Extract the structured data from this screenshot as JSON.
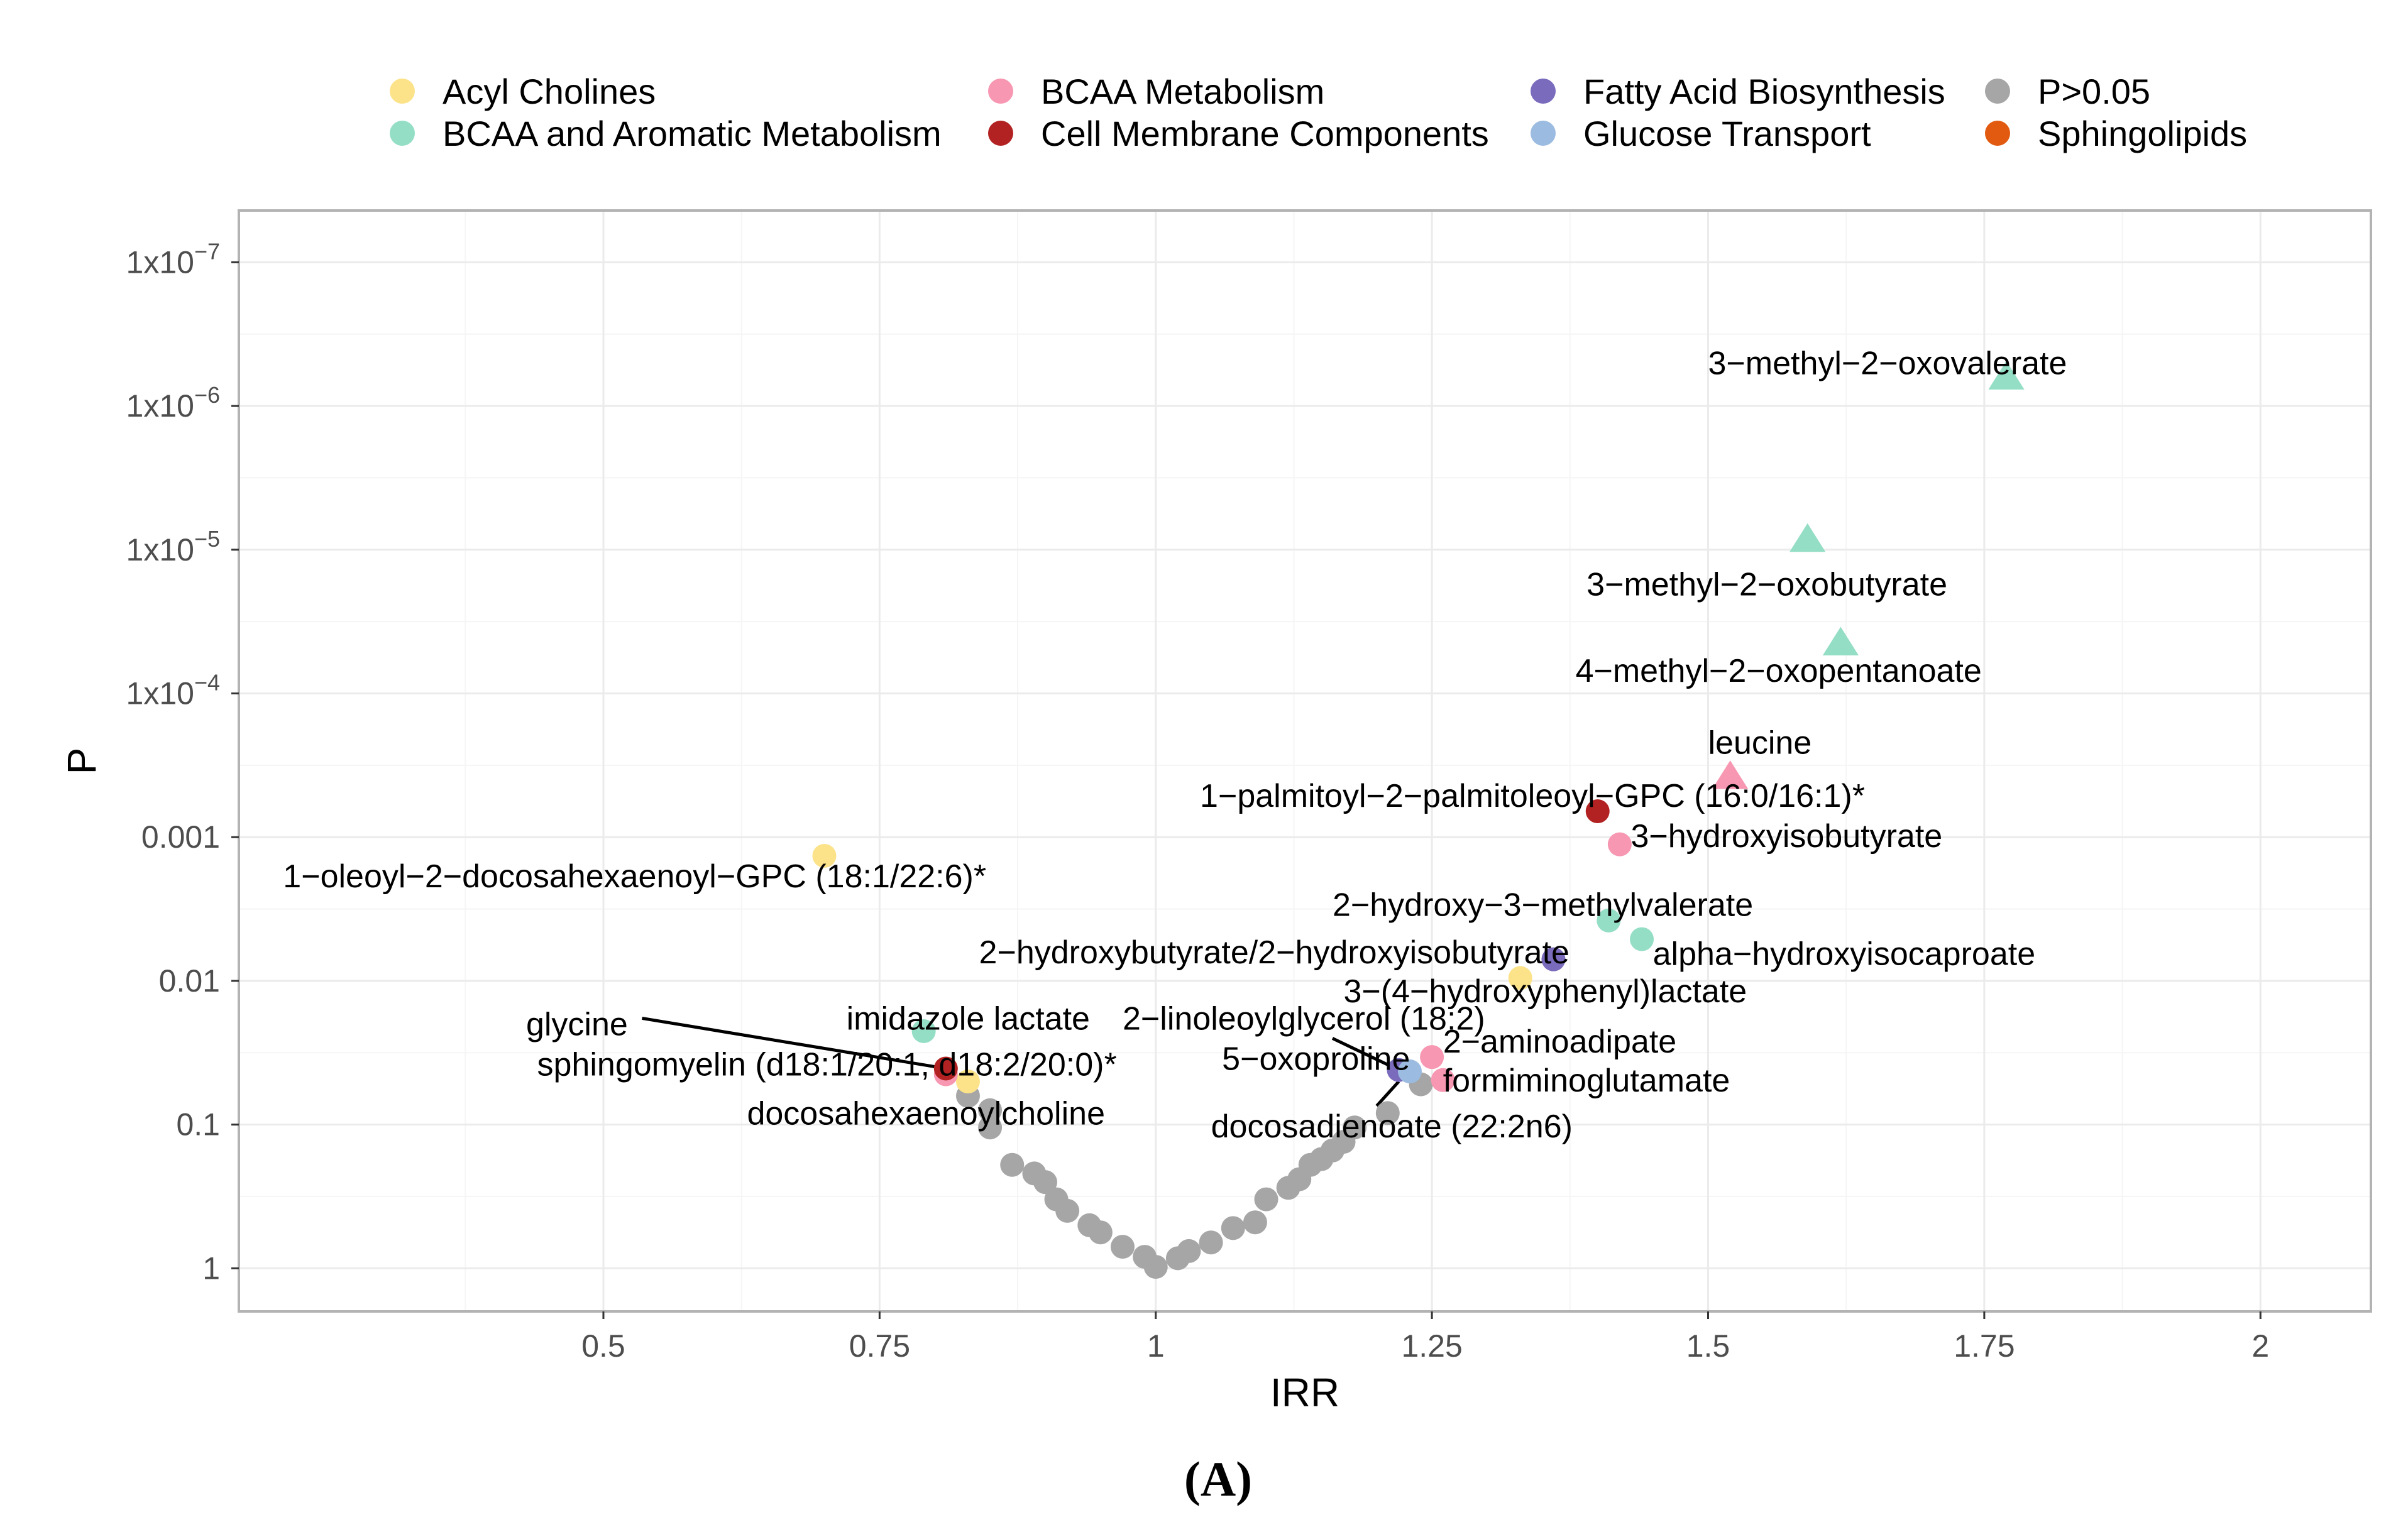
{
  "chart_data": {
    "type": "scatter",
    "title": "",
    "xlabel": "IRR",
    "ylabel": "P",
    "caption": "(A)",
    "xlim": [
      0.17,
      2.1
    ],
    "ylim_log10_neglog": [
      -0.3,
      7.36
    ],
    "x_ticks": [
      {
        "value": 0.5,
        "label": "0.5"
      },
      {
        "value": 0.75,
        "label": "0.75"
      },
      {
        "value": 1,
        "label": "1"
      },
      {
        "value": 1.25,
        "label": "1.25"
      },
      {
        "value": 1.5,
        "label": "1.5"
      },
      {
        "value": 1.75,
        "label": "1.75"
      },
      {
        "value": 2,
        "label": "2"
      }
    ],
    "y_ticks": [
      {
        "value": 0,
        "base": "1",
        "exp": ""
      },
      {
        "value": 1,
        "base": "0.1",
        "exp": ""
      },
      {
        "value": 2,
        "base": "0.01",
        "exp": ""
      },
      {
        "value": 3,
        "base": "0.001",
        "exp": ""
      },
      {
        "value": 4,
        "base": "1x10",
        "exp": "−4"
      },
      {
        "value": 5,
        "base": "1x10",
        "exp": "−5"
      },
      {
        "value": 6,
        "base": "1x10",
        "exp": "−6"
      },
      {
        "value": 7,
        "base": "1x10",
        "exp": "−7"
      }
    ],
    "legend": {
      "placement": "top",
      "entries": [
        {
          "name": "Acyl Cholines",
          "color": "#fce38a"
        },
        {
          "name": "BCAA and Aromatic Metabolism",
          "color": "#95dec6"
        },
        {
          "name": "BCAA Metabolism",
          "color": "#f797b2"
        },
        {
          "name": "Cell Membrane Components",
          "color": "#b22222"
        },
        {
          "name": "Fatty Acid Biosynthesis",
          "color": "#7a6bbd"
        },
        {
          "name": "Glucose Transport",
          "color": "#9bbbe1"
        },
        {
          "name": "P>0.05",
          "color": "#a6a6a6"
        },
        {
          "name": "Sphingolipids",
          "color": "#e15a10"
        }
      ]
    },
    "series": [
      {
        "name": "P>0.05",
        "color": "#a6a6a6",
        "points": [
          {
            "x": 0.83,
            "neglogp": 1.2
          },
          {
            "x": 0.85,
            "neglogp": 1.1
          },
          {
            "x": 0.85,
            "neglogp": 0.98
          },
          {
            "x": 0.87,
            "neglogp": 0.72
          },
          {
            "x": 0.89,
            "neglogp": 0.66
          },
          {
            "x": 0.9,
            "neglogp": 0.6
          },
          {
            "x": 0.91,
            "neglogp": 0.48
          },
          {
            "x": 0.92,
            "neglogp": 0.4
          },
          {
            "x": 0.94,
            "neglogp": 0.3
          },
          {
            "x": 0.95,
            "neglogp": 0.25
          },
          {
            "x": 0.97,
            "neglogp": 0.15
          },
          {
            "x": 0.99,
            "neglogp": 0.08
          },
          {
            "x": 1.0,
            "neglogp": 0.01
          },
          {
            "x": 1.02,
            "neglogp": 0.07
          },
          {
            "x": 1.03,
            "neglogp": 0.12
          },
          {
            "x": 1.05,
            "neglogp": 0.18
          },
          {
            "x": 1.07,
            "neglogp": 0.28
          },
          {
            "x": 1.09,
            "neglogp": 0.32
          },
          {
            "x": 1.1,
            "neglogp": 0.48
          },
          {
            "x": 1.12,
            "neglogp": 0.56
          },
          {
            "x": 1.13,
            "neglogp": 0.62
          },
          {
            "x": 1.14,
            "neglogp": 0.72
          },
          {
            "x": 1.15,
            "neglogp": 0.76
          },
          {
            "x": 1.16,
            "neglogp": 0.82
          },
          {
            "x": 1.17,
            "neglogp": 0.88
          },
          {
            "x": 1.18,
            "neglogp": 0.98
          },
          {
            "x": 1.21,
            "neglogp": 1.08
          },
          {
            "x": 1.24,
            "neglogp": 1.28
          }
        ]
      },
      {
        "name": "Acyl Cholines",
        "color": "#fce38a",
        "points": [
          {
            "x": 0.7,
            "neglogp": 2.87,
            "shape": "circle"
          },
          {
            "x": 0.83,
            "neglogp": 1.3,
            "shape": "circle"
          },
          {
            "x": 1.33,
            "neglogp": 2.02,
            "shape": "circle"
          }
        ]
      },
      {
        "name": "BCAA and Aromatic Metabolism",
        "color": "#95dec6",
        "points": [
          {
            "x": 1.77,
            "neglogp": 6.2,
            "shape": "triangle"
          },
          {
            "x": 1.59,
            "neglogp": 5.07,
            "shape": "triangle"
          },
          {
            "x": 1.62,
            "neglogp": 4.35,
            "shape": "triangle"
          },
          {
            "x": 1.41,
            "neglogp": 2.42,
            "shape": "circle"
          },
          {
            "x": 1.44,
            "neglogp": 2.29,
            "shape": "circle"
          },
          {
            "x": 0.79,
            "neglogp": 1.65,
            "shape": "circle"
          }
        ]
      },
      {
        "name": "BCAA Metabolism",
        "color": "#f797b2",
        "points": [
          {
            "x": 1.52,
            "neglogp": 3.42,
            "shape": "triangle"
          },
          {
            "x": 1.42,
            "neglogp": 2.95,
            "shape": "circle"
          },
          {
            "x": 1.25,
            "neglogp": 1.47,
            "shape": "circle"
          },
          {
            "x": 1.26,
            "neglogp": 1.31,
            "shape": "circle"
          },
          {
            "x": 0.81,
            "neglogp": 1.35,
            "shape": "circle"
          }
        ]
      },
      {
        "name": "Cell Membrane Components",
        "color": "#b22222",
        "points": [
          {
            "x": 1.4,
            "neglogp": 3.18,
            "shape": "circle"
          },
          {
            "x": 0.81,
            "neglogp": 1.39,
            "shape": "circle"
          }
        ]
      },
      {
        "name": "Fatty Acid Biosynthesis",
        "color": "#7a6bbd",
        "points": [
          {
            "x": 1.36,
            "neglogp": 2.15,
            "shape": "circle"
          },
          {
            "x": 1.22,
            "neglogp": 1.38,
            "shape": "circle"
          }
        ]
      },
      {
        "name": "Glucose Transport",
        "color": "#9bbbe1",
        "points": [
          {
            "x": 1.23,
            "neglogp": 1.37,
            "shape": "circle"
          }
        ]
      }
    ],
    "annotations": [
      {
        "text": "3−methyl−2−oxovalerate",
        "x": 1.5,
        "neglogp": 6.3,
        "anchor": "start"
      },
      {
        "text": "3−methyl−2−oxobutyrate",
        "x": 1.39,
        "neglogp": 4.76,
        "anchor": "start"
      },
      {
        "text": "4−methyl−2−oxopentanoate",
        "x": 1.38,
        "neglogp": 4.16,
        "anchor": "start"
      },
      {
        "text": "leucine",
        "x": 1.5,
        "neglogp": 3.66,
        "anchor": "start"
      },
      {
        "text": "1−palmitoyl−2−palmitoleoyl−GPC (16:0/16:1)*",
        "x": 1.04,
        "neglogp": 3.29,
        "anchor": "start"
      },
      {
        "text": "3−hydroxyisobutyrate",
        "x": 1.43,
        "neglogp": 3.01,
        "anchor": "start"
      },
      {
        "text": "1−oleoyl−2−docosahexaenoyl−GPC (18:1/22:6)*",
        "x": 0.21,
        "neglogp": 2.73,
        "anchor": "start"
      },
      {
        "text": "2−hydroxy−3−methylvalerate",
        "x": 1.16,
        "neglogp": 2.53,
        "anchor": "start"
      },
      {
        "text": "2−hydroxybutyrate/2−hydroxyisobutyrate",
        "x": 0.84,
        "neglogp": 2.2,
        "anchor": "start"
      },
      {
        "text": "alpha−hydroxyisocaproate",
        "x": 1.45,
        "neglogp": 2.19,
        "anchor": "start"
      },
      {
        "text": "3−(4−hydroxyphenyl)lactate",
        "x": 1.17,
        "neglogp": 1.93,
        "anchor": "start"
      },
      {
        "text": "imidazole lactate",
        "x": 0.72,
        "neglogp": 1.74,
        "anchor": "start"
      },
      {
        "text": "2−linoleoylglycerol (18:2)",
        "x": 0.97,
        "neglogp": 1.74,
        "anchor": "start"
      },
      {
        "text": "glycine",
        "x": 0.43,
        "neglogp": 1.7,
        "anchor": "start"
      },
      {
        "text": "2−aminoadipate",
        "x": 1.26,
        "neglogp": 1.58,
        "anchor": "start"
      },
      {
        "text": "sphingomyelin (d18:1/20:1, d18:2/20:0)*",
        "x": 0.44,
        "neglogp": 1.42,
        "anchor": "start"
      },
      {
        "text": "5−oxoproline",
        "x": 1.06,
        "neglogp": 1.46,
        "anchor": "start"
      },
      {
        "text": "formiminoglutamate",
        "x": 1.26,
        "neglogp": 1.31,
        "anchor": "start"
      },
      {
        "text": "docosahexaenoylcholine",
        "x": 0.63,
        "neglogp": 1.08,
        "anchor": "start"
      },
      {
        "text": "docosadienoate (22:2n6)",
        "x": 1.05,
        "neglogp": 0.99,
        "anchor": "start"
      }
    ],
    "connectors": [
      {
        "x1": 0.535,
        "y1": 1.74,
        "x2": 0.81,
        "y2": 1.39
      },
      {
        "x1": 1.16,
        "y1": 1.6,
        "x2": 1.22,
        "y2": 1.38
      },
      {
        "x1": 1.2,
        "y1": 1.13,
        "x2": 1.22,
        "y2": 1.3
      }
    ]
  }
}
